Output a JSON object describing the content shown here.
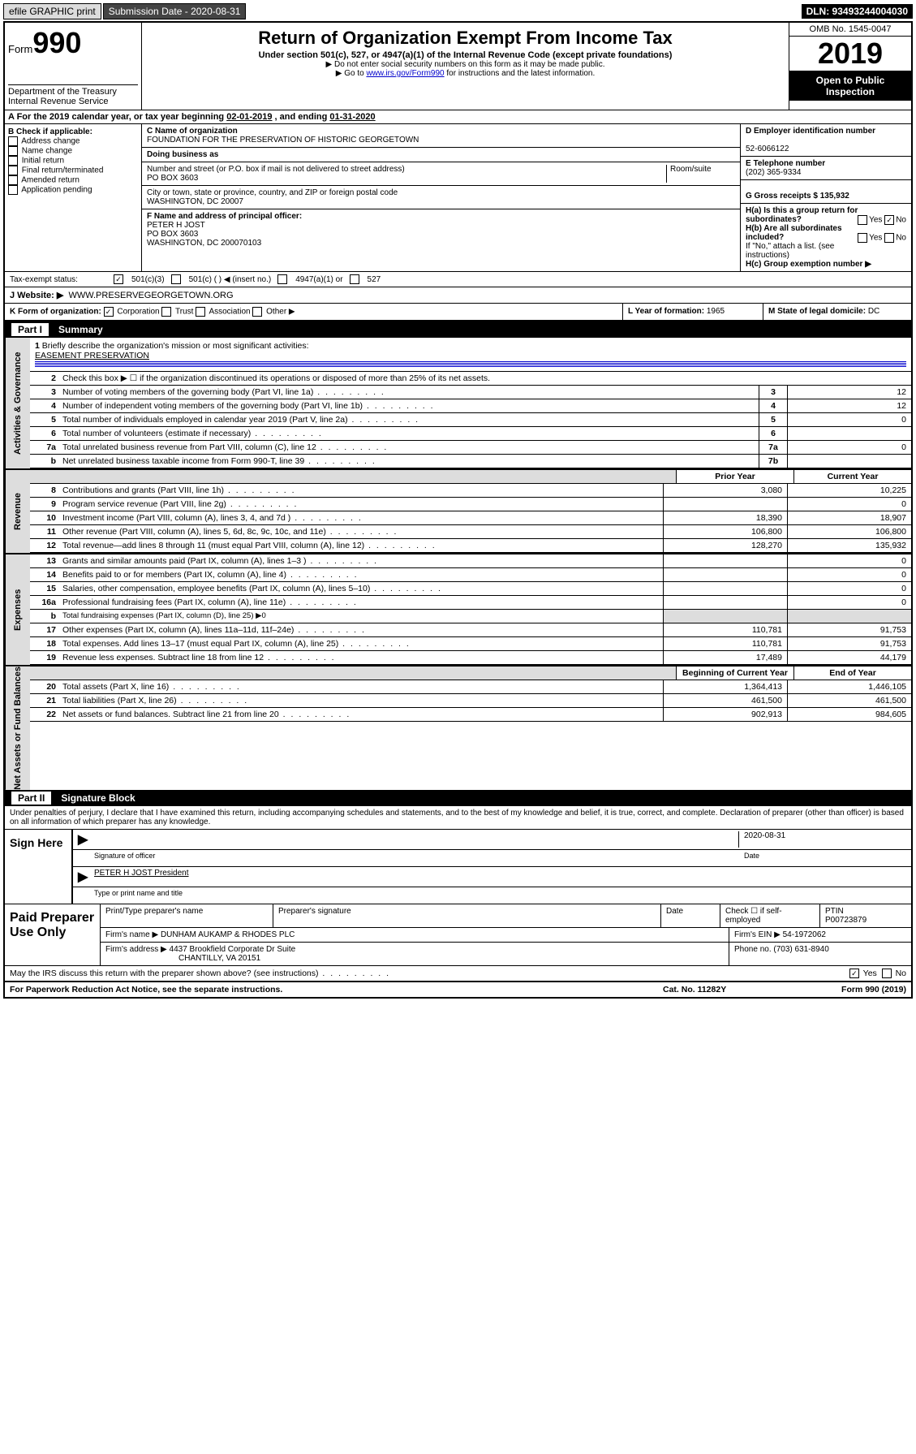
{
  "topbar": {
    "efile": "efile GRAPHIC print",
    "subdate_label": "Submission Date - 2020-08-31",
    "dln": "DLN: 93493244004030"
  },
  "header": {
    "form_prefix": "Form",
    "form_no": "990",
    "title": "Return of Organization Exempt From Income Tax",
    "subtitle": "Under section 501(c), 527, or 4947(a)(1) of the Internal Revenue Code (except private foundations)",
    "note1": "▶ Do not enter social security numbers on this form as it may be made public.",
    "note2_pre": "▶ Go to ",
    "note2_link": "www.irs.gov/Form990",
    "note2_post": " for instructions and the latest information.",
    "dept": "Department of the Treasury\nInternal Revenue Service",
    "omb": "OMB No. 1545-0047",
    "year": "2019",
    "open": "Open to Public Inspection"
  },
  "period": {
    "text_pre": "A For the 2019 calendar year, or tax year beginning ",
    "begin": "02-01-2019",
    "mid": " , and ending ",
    "end": "01-31-2020"
  },
  "colB": {
    "label": "B Check if applicable:",
    "items": [
      "Address change",
      "Name change",
      "Initial return",
      "Final return/terminated",
      "Amended return",
      "Application pending"
    ]
  },
  "colC": {
    "name_label": "C Name of organization",
    "name": "FOUNDATION FOR THE PRESERVATION OF HISTORIC GEORGETOWN",
    "dba_label": "Doing business as",
    "dba": "",
    "street_label": "Number and street (or P.O. box if mail is not delivered to street address)",
    "room_label": "Room/suite",
    "street": "PO BOX 3603",
    "city_label": "City or town, state or province, country, and ZIP or foreign postal code",
    "city": "WASHINGTON, DC  20007",
    "f_label": "F Name and address of principal officer:",
    "f_name": "PETER H JOST",
    "f_street": "PO BOX 3603",
    "f_city": "WASHINGTON, DC  200070103"
  },
  "colD": {
    "d_label": "D Employer identification number",
    "d_val": "52-6066122",
    "e_label": "E Telephone number",
    "e_val": "(202) 365-9334",
    "g_label": "G Gross receipts $ 135,932"
  },
  "colH": {
    "ha": "H(a)  Is this a group return for subordinates?",
    "hb": "H(b)  Are all subordinates included?",
    "hb_note": "If \"No,\" attach a list. (see instructions)",
    "hc": "H(c)  Group exemption number ▶",
    "yes": "Yes",
    "no": "No"
  },
  "tax": {
    "label": "Tax-exempt status:",
    "c501c3": "501(c)(3)",
    "c501c": "501(c) (  ) ◀ (insert no.)",
    "c4947": "4947(a)(1) or",
    "c527": "527"
  },
  "website": {
    "label": "J   Website: ▶",
    "val": "WWW.PRESERVEGEORGETOWN.ORG"
  },
  "rowK": {
    "label": "K Form of organization:",
    "corp": "Corporation",
    "trust": "Trust",
    "assoc": "Association",
    "other": "Other ▶",
    "l_label": "L Year of formation: ",
    "l_val": "1965",
    "m_label": "M State of legal domicile: ",
    "m_val": "DC"
  },
  "part1": {
    "no": "Part I",
    "title": "Summary"
  },
  "summary": {
    "sections": [
      {
        "side": "Activities & Governance",
        "rows": [
          {
            "type": "mission",
            "num": "1",
            "desc": "Briefly describe the organization's mission or most significant activities:",
            "val": "EASEMENT PRESERVATION"
          },
          {
            "type": "text",
            "num": "2",
            "desc": "Check this box ▶ ☐  if the organization discontinued its operations or disposed of more than 25% of its net assets."
          },
          {
            "type": "box",
            "num": "3",
            "desc": "Number of voting members of the governing body (Part VI, line 1a)",
            "box": "3",
            "val": "12"
          },
          {
            "type": "box",
            "num": "4",
            "desc": "Number of independent voting members of the governing body (Part VI, line 1b)",
            "box": "4",
            "val": "12"
          },
          {
            "type": "box",
            "num": "5",
            "desc": "Total number of individuals employed in calendar year 2019 (Part V, line 2a)",
            "box": "5",
            "val": "0"
          },
          {
            "type": "box",
            "num": "6",
            "desc": "Total number of volunteers (estimate if necessary)",
            "box": "6",
            "val": ""
          },
          {
            "type": "box",
            "num": "7a",
            "desc": "Total unrelated business revenue from Part VIII, column (C), line 12",
            "box": "7a",
            "val": "0"
          },
          {
            "type": "box",
            "num": "b",
            "desc": "Net unrelated business taxable income from Form 990-T, line 39",
            "box": "7b",
            "val": ""
          }
        ]
      },
      {
        "side": "Revenue",
        "header_cols": [
          "Prior Year",
          "Current Year"
        ],
        "rows": [
          {
            "type": "two",
            "num": "8",
            "desc": "Contributions and grants (Part VIII, line 1h)",
            "v1": "3,080",
            "v2": "10,225"
          },
          {
            "type": "two",
            "num": "9",
            "desc": "Program service revenue (Part VIII, line 2g)",
            "v1": "",
            "v2": "0"
          },
          {
            "type": "two",
            "num": "10",
            "desc": "Investment income (Part VIII, column (A), lines 3, 4, and 7d )",
            "v1": "18,390",
            "v2": "18,907"
          },
          {
            "type": "two",
            "num": "11",
            "desc": "Other revenue (Part VIII, column (A), lines 5, 6d, 8c, 9c, 10c, and 11e)",
            "v1": "106,800",
            "v2": "106,800"
          },
          {
            "type": "two",
            "num": "12",
            "desc": "Total revenue—add lines 8 through 11 (must equal Part VIII, column (A), line 12)",
            "v1": "128,270",
            "v2": "135,932"
          }
        ]
      },
      {
        "side": "Expenses",
        "rows": [
          {
            "type": "two",
            "num": "13",
            "desc": "Grants and similar amounts paid (Part IX, column (A), lines 1–3 )",
            "v1": "",
            "v2": "0"
          },
          {
            "type": "two",
            "num": "14",
            "desc": "Benefits paid to or for members (Part IX, column (A), line 4)",
            "v1": "",
            "v2": "0"
          },
          {
            "type": "two",
            "num": "15",
            "desc": "Salaries, other compensation, employee benefits (Part IX, column (A), lines 5–10)",
            "v1": "",
            "v2": "0"
          },
          {
            "type": "two",
            "num": "16a",
            "desc": "Professional fundraising fees (Part IX, column (A), line 11e)",
            "v1": "",
            "v2": "0"
          },
          {
            "type": "twoshade",
            "num": "b",
            "desc": "Total fundraising expenses (Part IX, column (D), line 25) ▶0",
            "v1": "",
            "v2": ""
          },
          {
            "type": "two",
            "num": "17",
            "desc": "Other expenses (Part IX, column (A), lines 11a–11d, 11f–24e)",
            "v1": "110,781",
            "v2": "91,753"
          },
          {
            "type": "two",
            "num": "18",
            "desc": "Total expenses. Add lines 13–17 (must equal Part IX, column (A), line 25)",
            "v1": "110,781",
            "v2": "91,753"
          },
          {
            "type": "two",
            "num": "19",
            "desc": "Revenue less expenses. Subtract line 18 from line 12",
            "v1": "17,489",
            "v2": "44,179"
          }
        ]
      },
      {
        "side": "Net Assets or Fund Balances",
        "header_cols": [
          "Beginning of Current Year",
          "End of Year"
        ],
        "rows": [
          {
            "type": "two",
            "num": "20",
            "desc": "Total assets (Part X, line 16)",
            "v1": "1,364,413",
            "v2": "1,446,105"
          },
          {
            "type": "two",
            "num": "21",
            "desc": "Total liabilities (Part X, line 26)",
            "v1": "461,500",
            "v2": "461,500"
          },
          {
            "type": "two",
            "num": "22",
            "desc": "Net assets or fund balances. Subtract line 21 from line 20",
            "v1": "902,913",
            "v2": "984,605"
          }
        ]
      }
    ]
  },
  "part2": {
    "no": "Part II",
    "title": "Signature Block"
  },
  "sig": {
    "declare": "Under penalties of perjury, I declare that I have examined this return, including accompanying schedules and statements, and to the best of my knowledge and belief, it is true, correct, and complete. Declaration of preparer (other than officer) is based on all information of which preparer has any knowledge.",
    "sign_here": "Sign Here",
    "sig_officer": "Signature of officer",
    "date_label": "Date",
    "date_val": "2020-08-31",
    "officer_name": "PETER H JOST President",
    "type_name": "Type or print name and title"
  },
  "paid": {
    "label": "Paid Preparer Use Only",
    "h1": "Print/Type preparer's name",
    "h2": "Preparer's signature",
    "h3": "Date",
    "h4": "Check ☐ if self-employed",
    "h5": "PTIN",
    "ptin": "P00723879",
    "firm_name_label": "Firm's name    ▶",
    "firm_name": "DUNHAM AUKAMP & RHODES PLC",
    "firm_ein_label": "Firm's EIN ▶",
    "firm_ein": "54-1972062",
    "firm_addr_label": "Firm's address ▶",
    "firm_addr1": "4437 Brookfield Corporate Dr Suite",
    "firm_addr2": "CHANTILLY, VA  20151",
    "phone_label": "Phone no.",
    "phone": "(703) 631-8940"
  },
  "discuss": {
    "q": "May the IRS discuss this return with the preparer shown above? (see instructions)",
    "yes": "Yes",
    "no": "No"
  },
  "footer": {
    "left": "For Paperwork Reduction Act Notice, see the separate instructions.",
    "mid": "Cat. No. 11282Y",
    "right": "Form 990 (2019)"
  }
}
